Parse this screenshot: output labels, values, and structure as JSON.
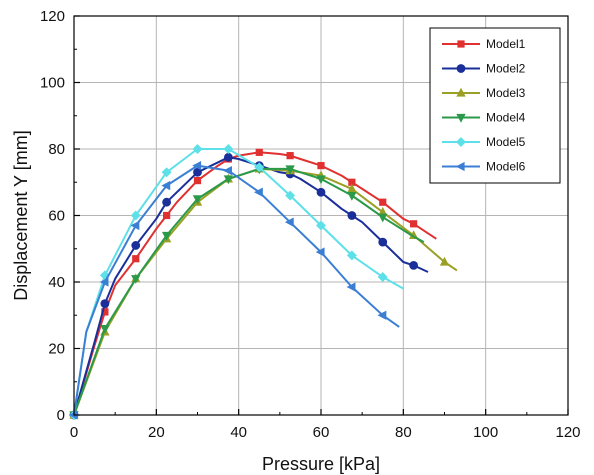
{
  "chart_data": {
    "type": "line",
    "title": "",
    "xlabel": "Pressure [kPa]",
    "ylabel": "Displacement Y [mm]",
    "xlim": [
      0,
      120
    ],
    "ylim": [
      0,
      120
    ],
    "xticks": [
      "0",
      "20",
      "40",
      "60",
      "80",
      "100",
      "120"
    ],
    "yticks": [
      "0",
      "20",
      "40",
      "60",
      "80",
      "100",
      "120"
    ],
    "grid": true,
    "legend_position": "top-right",
    "series": [
      {
        "name": "Model1",
        "color": "#e03030",
        "marker": "square",
        "curve": [
          [
            0,
            0
          ],
          [
            5,
            21
          ],
          [
            7.5,
            31
          ],
          [
            10,
            39
          ],
          [
            15,
            47
          ],
          [
            20,
            56
          ],
          [
            22.5,
            60
          ],
          [
            25,
            64
          ],
          [
            30,
            70.5
          ],
          [
            35,
            75
          ],
          [
            37.5,
            77
          ],
          [
            40,
            78
          ],
          [
            45,
            79
          ],
          [
            50,
            78.5
          ],
          [
            52.5,
            78
          ],
          [
            55,
            77
          ],
          [
            60,
            75
          ],
          [
            65,
            72
          ],
          [
            67.5,
            70
          ],
          [
            70,
            68
          ],
          [
            75,
            64
          ],
          [
            80,
            59
          ],
          [
            82.5,
            57.5
          ],
          [
            88,
            53
          ]
        ],
        "markers": [
          [
            0,
            0
          ],
          [
            7.5,
            31
          ],
          [
            15,
            47
          ],
          [
            22.5,
            60
          ],
          [
            30,
            70.5
          ],
          [
            37.5,
            77
          ],
          [
            45,
            79
          ],
          [
            52.5,
            78
          ],
          [
            60,
            75
          ],
          [
            67.5,
            70
          ],
          [
            75,
            64
          ],
          [
            82.5,
            57.5
          ]
        ]
      },
      {
        "name": "Model2",
        "color": "#1a2f99",
        "marker": "circle",
        "curve": [
          [
            0,
            0
          ],
          [
            5,
            22
          ],
          [
            7.5,
            33.5
          ],
          [
            10,
            41
          ],
          [
            15,
            51
          ],
          [
            20,
            59
          ],
          [
            22.5,
            64
          ],
          [
            25,
            67
          ],
          [
            30,
            73
          ],
          [
            35,
            76
          ],
          [
            37.5,
            77.5
          ],
          [
            40,
            77
          ],
          [
            45,
            75
          ],
          [
            50,
            73
          ],
          [
            52.5,
            72.5
          ],
          [
            55,
            71
          ],
          [
            60,
            67
          ],
          [
            65,
            62
          ],
          [
            67.5,
            60
          ],
          [
            70,
            58
          ],
          [
            75,
            52
          ],
          [
            80,
            46
          ],
          [
            82.5,
            45
          ],
          [
            86,
            43
          ]
        ],
        "markers": [
          [
            0,
            0
          ],
          [
            7.5,
            33.5
          ],
          [
            15,
            51
          ],
          [
            22.5,
            64
          ],
          [
            30,
            73
          ],
          [
            37.5,
            77.5
          ],
          [
            45,
            75
          ],
          [
            52.5,
            72.5
          ],
          [
            60,
            67
          ],
          [
            67.5,
            60
          ],
          [
            75,
            52
          ],
          [
            82.5,
            45
          ]
        ]
      },
      {
        "name": "Model3",
        "color": "#9aa025",
        "marker": "triangle-up",
        "curve": [
          [
            0,
            0
          ],
          [
            7.5,
            25
          ],
          [
            15,
            41
          ],
          [
            22.5,
            53
          ],
          [
            30,
            64
          ],
          [
            37.5,
            71
          ],
          [
            45,
            74
          ],
          [
            52.5,
            73.5
          ],
          [
            60,
            72
          ],
          [
            67.5,
            68
          ],
          [
            75,
            61
          ],
          [
            82.5,
            54
          ],
          [
            90,
            46
          ],
          [
            93,
            43.5
          ]
        ],
        "markers": [
          [
            0,
            0
          ],
          [
            7.5,
            25
          ],
          [
            15,
            41
          ],
          [
            22.5,
            53
          ],
          [
            30,
            64
          ],
          [
            37.5,
            71
          ],
          [
            45,
            74
          ],
          [
            52.5,
            73.5
          ],
          [
            60,
            72
          ],
          [
            67.5,
            68
          ],
          [
            75,
            61
          ],
          [
            82.5,
            54
          ],
          [
            90,
            46
          ]
        ]
      },
      {
        "name": "Model4",
        "color": "#2a9a4a",
        "marker": "triangle-down",
        "curve": [
          [
            0,
            0
          ],
          [
            7.5,
            26
          ],
          [
            15,
            41
          ],
          [
            22.5,
            54
          ],
          [
            30,
            65
          ],
          [
            37.5,
            71
          ],
          [
            45,
            74
          ],
          [
            52.5,
            74
          ],
          [
            60,
            71
          ],
          [
            67.5,
            66
          ],
          [
            75,
            59.5
          ],
          [
            82,
            54
          ],
          [
            85,
            52
          ]
        ],
        "markers": [
          [
            0,
            0
          ],
          [
            7.5,
            26
          ],
          [
            15,
            41
          ],
          [
            22.5,
            54
          ],
          [
            30,
            65
          ],
          [
            37.5,
            71
          ],
          [
            45,
            74
          ],
          [
            52.5,
            74
          ],
          [
            60,
            71
          ],
          [
            67.5,
            66
          ],
          [
            75,
            59.5
          ]
        ]
      },
      {
        "name": "Model5",
        "color": "#5ee0e8",
        "marker": "diamond",
        "curve": [
          [
            0,
            0
          ],
          [
            3,
            25
          ],
          [
            7.5,
            42
          ],
          [
            15,
            60
          ],
          [
            22.5,
            73
          ],
          [
            30,
            80
          ],
          [
            37.5,
            80
          ],
          [
            45,
            74.5
          ],
          [
            52.5,
            66
          ],
          [
            60,
            57
          ],
          [
            67.5,
            48
          ],
          [
            75,
            41.5
          ],
          [
            80,
            38
          ]
        ],
        "markers": [
          [
            0,
            0
          ],
          [
            7.5,
            42
          ],
          [
            15,
            60
          ],
          [
            22.5,
            73
          ],
          [
            30,
            80
          ],
          [
            37.5,
            80
          ],
          [
            45,
            74.5
          ],
          [
            52.5,
            66
          ],
          [
            60,
            57
          ],
          [
            67.5,
            48
          ],
          [
            75,
            41.5
          ]
        ]
      },
      {
        "name": "Model6",
        "color": "#3b7fd4",
        "marker": "triangle-left",
        "curve": [
          [
            0,
            0
          ],
          [
            3,
            25
          ],
          [
            7.5,
            40
          ],
          [
            15,
            57
          ],
          [
            22.5,
            69
          ],
          [
            30,
            75
          ],
          [
            37.5,
            73.5
          ],
          [
            45,
            67
          ],
          [
            52.5,
            58
          ],
          [
            60,
            49
          ],
          [
            67.5,
            38.5
          ],
          [
            75,
            30
          ],
          [
            79,
            26.5
          ]
        ],
        "markers": [
          [
            0,
            0
          ],
          [
            7.5,
            40
          ],
          [
            15,
            57
          ],
          [
            22.5,
            69
          ],
          [
            30,
            75
          ],
          [
            37.5,
            73.5
          ],
          [
            45,
            67
          ],
          [
            52.5,
            58
          ],
          [
            60,
            49
          ],
          [
            67.5,
            38.5
          ],
          [
            75,
            30
          ]
        ]
      }
    ]
  }
}
